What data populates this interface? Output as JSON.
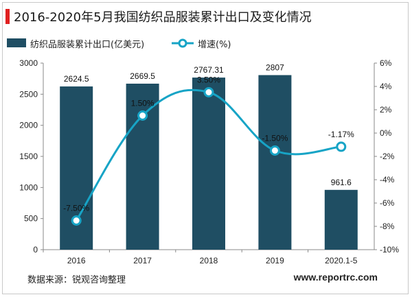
{
  "header": {
    "title": "2016-2020年5月我国纺织品服装累计出口及变化情况"
  },
  "footer": {
    "source": "数据来源：锐观咨询整理",
    "website": "www.reportrc.com"
  },
  "colors": {
    "bar": "#1f4e63",
    "line": "#17a4c6",
    "accent": "#e02020"
  },
  "chart_data": {
    "type": "bar",
    "categories": [
      "2016",
      "2017",
      "2018",
      "2019",
      "2020.1-5"
    ],
    "series": [
      {
        "name": "纺织品服装累计出口(亿美元)",
        "type": "bar",
        "axis": "left",
        "values": [
          2624.5,
          2669.5,
          2767.31,
          2807,
          961.6
        ],
        "labels": [
          "2624.5",
          "2669.5",
          "2767.31",
          "2807",
          "961.6"
        ]
      },
      {
        "name": "增速(%)",
        "type": "line",
        "axis": "right",
        "values": [
          -7.5,
          1.5,
          3.5,
          -1.5,
          -1.17
        ],
        "labels": [
          "-7.50%",
          "1.50%",
          "3.50%",
          "-1.50%",
          "-1.17%"
        ]
      }
    ],
    "y_left": {
      "min": 0,
      "max": 3000,
      "ticks": [
        "0",
        "500",
        "1000",
        "1500",
        "2000",
        "2500",
        "3000"
      ]
    },
    "y_right": {
      "min": -10,
      "max": 6,
      "ticks": [
        "-10%",
        "-8%",
        "-6%",
        "-4%",
        "-2%",
        "0%",
        "2%",
        "4%",
        "6%"
      ]
    },
    "grid": false,
    "legend_position": "top-left"
  }
}
